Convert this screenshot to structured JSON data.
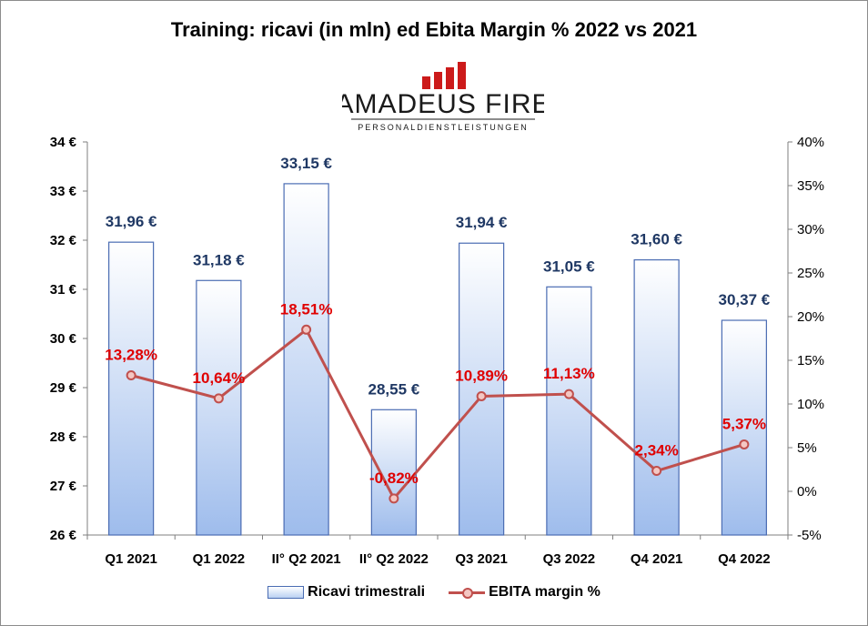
{
  "logo": {
    "name": "AMADEUS FIRE",
    "tagline": "PERSONALDIENSTLEISTUNGEN",
    "color": "#cc1a1a"
  },
  "chart_data": {
    "type": "bar",
    "title": "Training:  ricavi  (in mln)  ed Ebita Margin % 2022 vs 2021",
    "categories": [
      "Q1 2021",
      "Q1 2022",
      "II° Q2 2021",
      "II° Q2 2022",
      "Q3 2021",
      "Q3 2022",
      "Q4 2021",
      "Q4 2022"
    ],
    "y_left": {
      "ylim": [
        26,
        34
      ],
      "ticks": [
        26,
        27,
        28,
        29,
        30,
        31,
        32,
        33,
        34
      ],
      "tick_labels": [
        "26 €",
        "27 €",
        "28 €",
        "29 €",
        "30 €",
        "31 €",
        "32 €",
        "33 €",
        "34 €"
      ]
    },
    "y_right": {
      "ylim": [
        -5,
        40
      ],
      "ticks": [
        -5,
        0,
        5,
        10,
        15,
        20,
        25,
        30,
        35,
        40
      ],
      "tick_labels": [
        "-5%",
        "0%",
        "5%",
        "10%",
        "15%",
        "20%",
        "25%",
        "30%",
        "35%",
        "40%"
      ]
    },
    "series": [
      {
        "name": "Ricavi trimestrali",
        "type": "bar",
        "axis": "left",
        "values": [
          31.96,
          31.18,
          33.15,
          28.55,
          31.94,
          31.05,
          31.6,
          30.37
        ],
        "labels": [
          "31,96 €",
          "31,18 €",
          "33,15 €",
          "28,55 €",
          "31,94 €",
          "31,05 €",
          "31,60 €",
          "30,37 €"
        ],
        "color": "#4a6cb3"
      },
      {
        "name": "EBITA margin %",
        "type": "line",
        "axis": "right",
        "values": [
          13.28,
          10.64,
          18.51,
          -0.82,
          10.89,
          11.13,
          2.34,
          5.37
        ],
        "labels": [
          "13,28%",
          "10,64%",
          "18,51%",
          "-0,82%",
          "10,89%",
          "11,13%",
          "2,34%",
          "5,37%"
        ],
        "color": "#c0504d"
      }
    ],
    "grid": false,
    "legend_position": "bottom"
  }
}
